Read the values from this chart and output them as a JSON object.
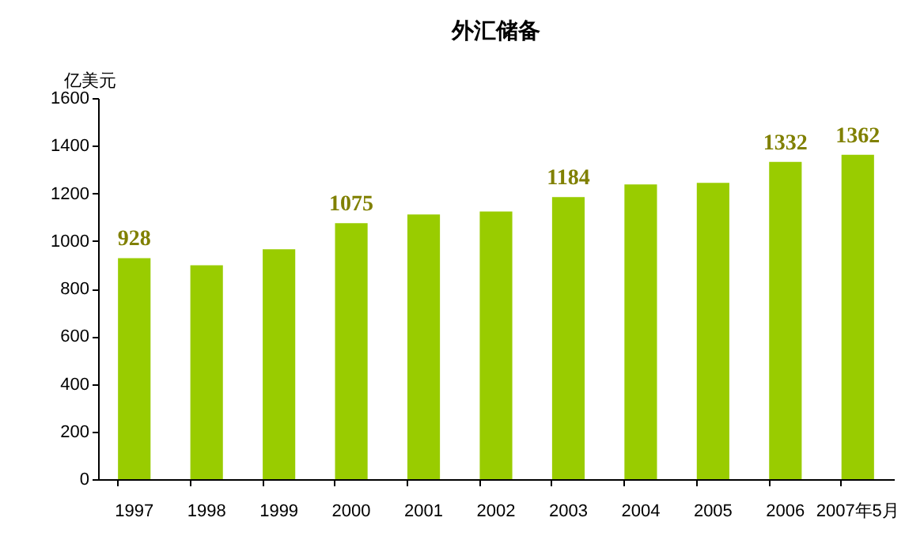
{
  "chart_data": {
    "type": "bar",
    "title": "外汇储备",
    "ylabel": "亿美元",
    "categories": [
      "1997",
      "1998",
      "1999",
      "2000",
      "2001",
      "2002",
      "2003",
      "2004",
      "2005",
      "2006",
      "2007年5月"
    ],
    "values": [
      928,
      898,
      965,
      1075,
      1111,
      1124,
      1184,
      1237,
      1244,
      1332,
      1362
    ],
    "value_labels": [
      "928",
      null,
      null,
      "1075",
      null,
      null,
      "1184",
      null,
      null,
      "1332",
      "1362"
    ],
    "color": "#99cc00",
    "ylim": [
      0,
      1600
    ],
    "yticks": [
      0,
      200,
      400,
      600,
      800,
      1000,
      1200,
      1400,
      1600
    ],
    "grid": false
  }
}
